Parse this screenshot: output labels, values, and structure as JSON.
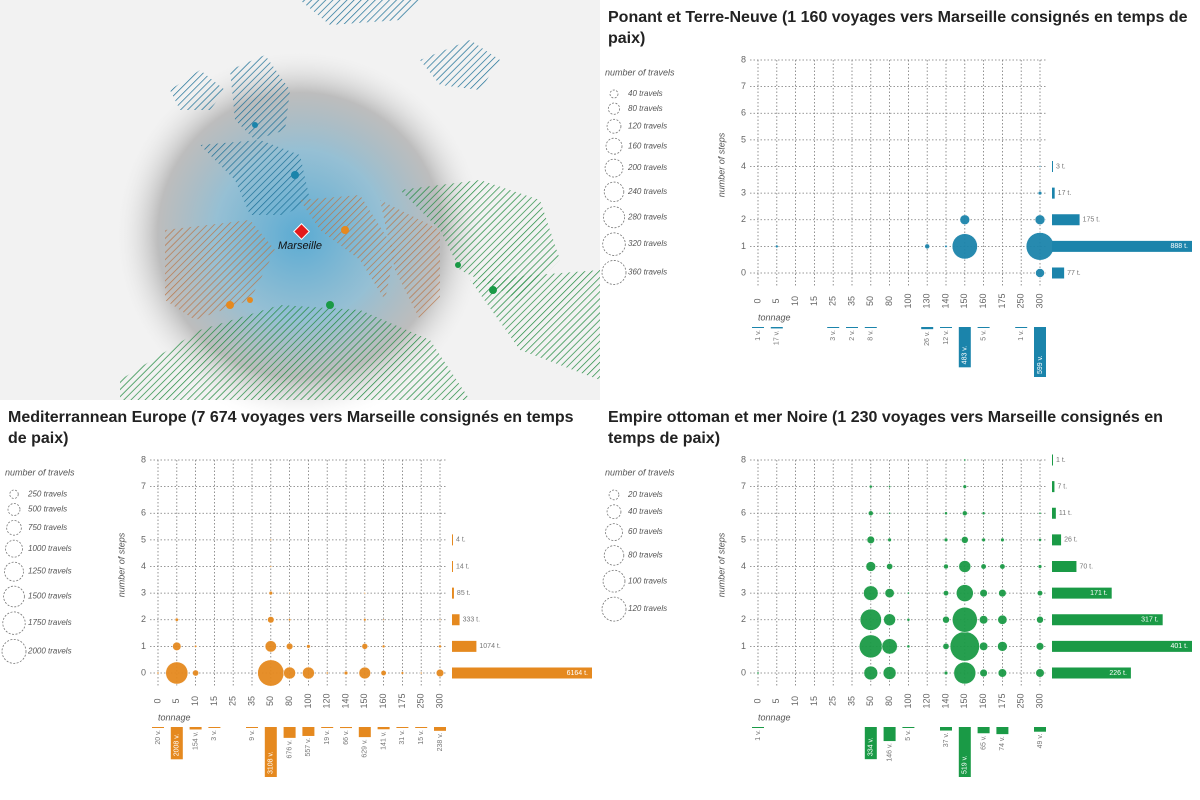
{
  "map": {
    "city_label": "Marseille"
  },
  "chart_data": [
    {
      "type": "bubble",
      "title": "Ponant et Terre-Neuve (1 160 voyages vers Marseille consignés en temps de paix)",
      "color": "#1b84ab",
      "legend_title": "number of travels",
      "legend": [
        {
          "value": 40,
          "label": "40 travels"
        },
        {
          "value": 80,
          "label": "80 travels"
        },
        {
          "value": 120,
          "label": "120 travels"
        },
        {
          "value": 160,
          "label": "160 travels"
        },
        {
          "value": 200,
          "label": "200 travels"
        },
        {
          "value": 240,
          "label": "240 travels"
        },
        {
          "value": 280,
          "label": "280 travels"
        },
        {
          "value": 320,
          "label": "320 travels"
        },
        {
          "value": 360,
          "label": "360 travels"
        }
      ],
      "y_label": "number of steps",
      "ylim": [
        0,
        8
      ],
      "yticks": [
        0,
        1,
        2,
        3,
        4,
        5,
        6,
        7,
        8
      ],
      "x_label": "tonnage",
      "categories": [
        "0",
        "5",
        "10",
        "15",
        "25",
        "35",
        "50",
        "80",
        "100",
        "130",
        "140",
        "150",
        "160",
        "175",
        "250",
        "300"
      ],
      "bubbles": [
        [
          null,
          null,
          null,
          null,
          null,
          null,
          null,
          null,
          null,
          null,
          null,
          null,
          null,
          null,
          null,
          50
        ],
        [
          null,
          5,
          null,
          null,
          null,
          null,
          null,
          null,
          null,
          15,
          4,
          400,
          null,
          null,
          null,
          480
        ],
        [
          null,
          null,
          null,
          null,
          null,
          null,
          null,
          null,
          null,
          null,
          null,
          60,
          null,
          null,
          null,
          60
        ],
        [
          null,
          null,
          null,
          null,
          null,
          null,
          null,
          null,
          null,
          null,
          null,
          null,
          null,
          null,
          null,
          9
        ],
        [
          null,
          null,
          null,
          null,
          null,
          null,
          null,
          null,
          null,
          null,
          null,
          null,
          null,
          null,
          null,
          2
        ],
        [
          null,
          null,
          null,
          null,
          null,
          null,
          null,
          null,
          null,
          null,
          null,
          null,
          null,
          null,
          null,
          null
        ],
        [
          null,
          null,
          null,
          null,
          null,
          null,
          null,
          null,
          null,
          null,
          null,
          null,
          null,
          null,
          null,
          null
        ],
        [
          null,
          null,
          null,
          null,
          null,
          null,
          null,
          null,
          null,
          null,
          null,
          null,
          null,
          null,
          null,
          null
        ],
        [
          null,
          null,
          null,
          null,
          null,
          null,
          null,
          null,
          null,
          null,
          null,
          null,
          null,
          null,
          null,
          null
        ]
      ],
      "step_totals": {
        "values": [
          77,
          888,
          175,
          17,
          3,
          null,
          null,
          null,
          null
        ],
        "value_labels": [
          "77 t.",
          "888 t.",
          "175 t.",
          "17 t.",
          "3 t.",
          null,
          null,
          null,
          null
        ]
      },
      "tonnage_totals": {
        "values": [
          1,
          17,
          null,
          null,
          3,
          2,
          8,
          null,
          null,
          26,
          12,
          483,
          5,
          null,
          1,
          599
        ],
        "value_labels": [
          "1 v.",
          "17 v.",
          null,
          null,
          "3 v.",
          "2 v.",
          "8 v.",
          null,
          null,
          "26 v.",
          "12 v.",
          "483 v.",
          "5 v.",
          null,
          "1 v.",
          "599 v."
        ]
      }
    },
    {
      "type": "bubble",
      "title": "Mediterrannean Europe (7 674 voyages vers Marseille consignés en temps de paix)",
      "color": "#e5891f",
      "legend_title": "number of travels",
      "legend": [
        {
          "value": 250,
          "label": "250 travels"
        },
        {
          "value": 500,
          "label": "500 travels"
        },
        {
          "value": 750,
          "label": "750 travels"
        },
        {
          "value": 1000,
          "label": "1000 travels"
        },
        {
          "value": 1250,
          "label": "1250 travels"
        },
        {
          "value": 1500,
          "label": "1500 travels"
        },
        {
          "value": 1750,
          "label": "1750 travels"
        },
        {
          "value": 2000,
          "label": "2000 travels"
        }
      ],
      "y_label": "number of steps",
      "ylim": [
        0,
        8
      ],
      "yticks": [
        0,
        1,
        2,
        3,
        4,
        5,
        6,
        7,
        8
      ],
      "x_label": "tonnage",
      "categories": [
        "0",
        "5",
        "10",
        "15",
        "25",
        "35",
        "50",
        "80",
        "100",
        "120",
        "140",
        "150",
        "160",
        "175",
        "250",
        "300"
      ],
      "bubbles": [
        [
          15,
          1700,
          130,
          null,
          null,
          null,
          2400,
          500,
          500,
          15,
          50,
          480,
          100,
          25,
          12,
          200
        ],
        [
          null,
          250,
          20,
          null,
          null,
          null,
          450,
          150,
          50,
          null,
          null,
          120,
          30,
          null,
          null,
          30
        ],
        [
          null,
          40,
          null,
          null,
          null,
          null,
          150,
          20,
          null,
          null,
          null,
          25,
          8,
          null,
          null,
          5
        ],
        [
          null,
          null,
          null,
          null,
          null,
          null,
          50,
          5,
          null,
          null,
          null,
          4,
          null,
          null,
          null,
          null
        ],
        [
          null,
          null,
          null,
          null,
          null,
          null,
          10,
          null,
          null,
          null,
          null,
          null,
          null,
          null,
          null,
          null
        ],
        [
          null,
          null,
          null,
          null,
          null,
          null,
          3,
          null,
          null,
          null,
          null,
          null,
          null,
          null,
          null,
          null
        ],
        [
          null,
          null,
          null,
          null,
          null,
          null,
          null,
          null,
          null,
          null,
          null,
          null,
          null,
          null,
          null,
          null
        ],
        [
          null,
          null,
          null,
          null,
          null,
          null,
          null,
          null,
          null,
          null,
          null,
          null,
          null,
          null,
          null,
          null
        ],
        [
          null,
          null,
          null,
          null,
          null,
          null,
          null,
          null,
          null,
          null,
          null,
          null,
          null,
          null,
          null,
          null
        ]
      ],
      "step_totals": {
        "values": [
          6164,
          1074,
          333,
          85,
          14,
          4,
          null,
          null,
          null
        ],
        "value_labels": [
          "6164 t.",
          "1074 t.",
          "333 t.",
          "85 t.",
          "14 t.",
          "4 t.",
          null,
          null,
          null
        ]
      },
      "tonnage_totals": {
        "values": [
          20,
          2008,
          154,
          3,
          null,
          9,
          3108,
          676,
          557,
          19,
          66,
          629,
          141,
          31,
          15,
          238
        ],
        "value_labels": [
          "20 v.",
          "2008 v.",
          "154 v.",
          "3 v.",
          null,
          "9 v.",
          "3108 v.",
          "676 v.",
          "557 v.",
          "19 v.",
          "66 v.",
          "629 v.",
          "141 v.",
          "31 v.",
          "15 v.",
          "238 v."
        ]
      }
    },
    {
      "type": "bubble",
      "title": "Empire ottoman et mer Noire (1 230 voyages vers Marseille consignés en temps de paix)",
      "color": "#1a9a46",
      "legend_title": "number of travels",
      "legend": [
        {
          "value": 20,
          "label": "20 travels"
        },
        {
          "value": 40,
          "label": "40 travels"
        },
        {
          "value": 60,
          "label": "60 travels"
        },
        {
          "value": 80,
          "label": "80 travels"
        },
        {
          "value": 100,
          "label": "100 travels"
        },
        {
          "value": 120,
          "label": "120 travels"
        }
      ],
      "y_label": "number of steps",
      "ylim": [
        0,
        8
      ],
      "yticks": [
        0,
        1,
        2,
        3,
        4,
        5,
        6,
        7,
        8
      ],
      "x_label": "tonnage",
      "categories": [
        "0",
        "5",
        "10",
        "15",
        "25",
        "35",
        "50",
        "80",
        "100",
        "120",
        "140",
        "150",
        "160",
        "175",
        "250",
        "300"
      ],
      "bubbles": [
        [
          1,
          null,
          null,
          null,
          null,
          null,
          40,
          35,
          null,
          null,
          3,
          100,
          12,
          15,
          null,
          15
        ],
        [
          null,
          null,
          null,
          null,
          null,
          null,
          110,
          50,
          2,
          null,
          8,
          180,
          15,
          20,
          null,
          12
        ],
        [
          null,
          null,
          null,
          null,
          null,
          null,
          95,
          30,
          2,
          null,
          10,
          130,
          15,
          18,
          null,
          10
        ],
        [
          null,
          null,
          null,
          null,
          null,
          null,
          45,
          18,
          1,
          null,
          6,
          60,
          12,
          12,
          null,
          6
        ],
        [
          null,
          null,
          null,
          null,
          null,
          null,
          20,
          8,
          null,
          null,
          5,
          30,
          6,
          6,
          null,
          3
        ],
        [
          null,
          null,
          null,
          null,
          null,
          null,
          12,
          3,
          null,
          null,
          3,
          10,
          3,
          3,
          null,
          2
        ],
        [
          null,
          null,
          null,
          null,
          null,
          null,
          5,
          1,
          null,
          null,
          2,
          5,
          2,
          null,
          null,
          1
        ],
        [
          null,
          null,
          null,
          null,
          null,
          null,
          2,
          1,
          null,
          null,
          null,
          3,
          null,
          null,
          null,
          null
        ],
        [
          null,
          null,
          null,
          null,
          null,
          null,
          null,
          null,
          null,
          null,
          null,
          1,
          null,
          null,
          null,
          null
        ]
      ],
      "step_totals": {
        "values": [
          226,
          401,
          317,
          171,
          70,
          26,
          11,
          7,
          1
        ],
        "value_labels": [
          "226 t.",
          "401 t.",
          "317 t.",
          "171 t.",
          "70 t.",
          "26 t.",
          "11 t.",
          "7 t.",
          "1 t."
        ]
      },
      "tonnage_totals": {
        "values": [
          1,
          null,
          null,
          null,
          null,
          null,
          334,
          146,
          5,
          null,
          37,
          519,
          65,
          74,
          null,
          49
        ],
        "value_labels": [
          "1 v.",
          null,
          null,
          null,
          null,
          null,
          "334 v.",
          "146 v.",
          "5 v.",
          null,
          "37 v.",
          "519 v.",
          "65 v.",
          "74 v.",
          null,
          "49 v."
        ]
      }
    }
  ]
}
